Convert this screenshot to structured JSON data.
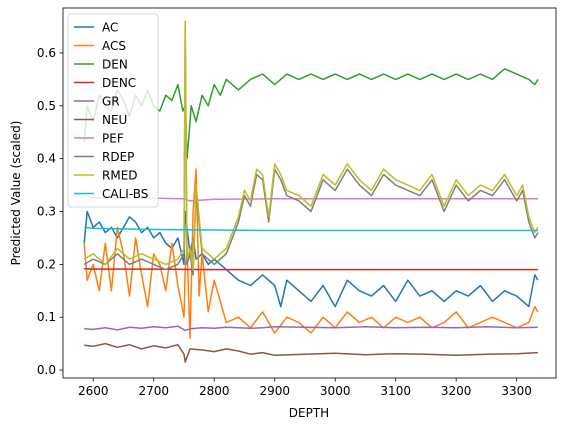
{
  "chart_data": {
    "type": "line",
    "xlabel": "DEPTH",
    "ylabel": "Predicted Value (scaled)",
    "xlim": [
      2550,
      3365
    ],
    "ylim": [
      -0.015,
      0.685
    ],
    "xticks": [
      2600,
      2700,
      2800,
      2900,
      3000,
      3100,
      3200,
      3300
    ],
    "yticks": [
      0.0,
      0.1,
      0.2,
      0.3,
      0.4,
      0.5,
      0.6
    ],
    "grid": false,
    "legend_position": "upper-left",
    "series": [
      {
        "name": "AC",
        "color": "#1f77b4",
        "x": [
          2585,
          2590,
          2600,
          2610,
          2620,
          2630,
          2640,
          2650,
          2660,
          2670,
          2680,
          2690,
          2700,
          2710,
          2720,
          2730,
          2740,
          2750,
          2752,
          2760,
          2765,
          2770,
          2780,
          2790,
          2800,
          2820,
          2840,
          2860,
          2880,
          2900,
          2910,
          2920,
          2940,
          2960,
          2980,
          3000,
          3020,
          3040,
          3060,
          3080,
          3100,
          3120,
          3140,
          3160,
          3180,
          3200,
          3220,
          3240,
          3260,
          3280,
          3300,
          3320,
          3330,
          3335
        ],
        "y": [
          0.24,
          0.3,
          0.27,
          0.28,
          0.26,
          0.27,
          0.25,
          0.27,
          0.29,
          0.28,
          0.26,
          0.27,
          0.25,
          0.26,
          0.24,
          0.23,
          0.25,
          0.2,
          0.3,
          0.22,
          0.25,
          0.21,
          0.22,
          0.2,
          0.21,
          0.19,
          0.17,
          0.16,
          0.18,
          0.16,
          0.12,
          0.17,
          0.15,
          0.13,
          0.16,
          0.12,
          0.17,
          0.15,
          0.14,
          0.16,
          0.13,
          0.17,
          0.14,
          0.15,
          0.13,
          0.15,
          0.14,
          0.16,
          0.13,
          0.15,
          0.14,
          0.12,
          0.18,
          0.17
        ]
      },
      {
        "name": "ACS",
        "color": "#ff7f0e",
        "x": [
          2585,
          2590,
          2600,
          2610,
          2620,
          2630,
          2640,
          2650,
          2660,
          2670,
          2680,
          2690,
          2700,
          2710,
          2720,
          2730,
          2740,
          2745,
          2750,
          2752,
          2755,
          2760,
          2765,
          2770,
          2775,
          2780,
          2790,
          2800,
          2820,
          2840,
          2860,
          2880,
          2900,
          2920,
          2940,
          2960,
          2980,
          3000,
          3020,
          3040,
          3060,
          3080,
          3100,
          3120,
          3140,
          3160,
          3180,
          3200,
          3220,
          3240,
          3260,
          3280,
          3300,
          3320,
          3330,
          3335
        ],
        "y": [
          0.24,
          0.17,
          0.2,
          0.15,
          0.24,
          0.15,
          0.27,
          0.22,
          0.14,
          0.25,
          0.18,
          0.12,
          0.22,
          0.2,
          0.15,
          0.24,
          0.16,
          0.13,
          0.1,
          0.19,
          0.23,
          0.06,
          0.3,
          0.38,
          0.14,
          0.22,
          0.11,
          0.17,
          0.09,
          0.1,
          0.08,
          0.11,
          0.07,
          0.1,
          0.09,
          0.07,
          0.1,
          0.08,
          0.11,
          0.09,
          0.1,
          0.08,
          0.1,
          0.09,
          0.1,
          0.08,
          0.09,
          0.11,
          0.08,
          0.09,
          0.1,
          0.09,
          0.08,
          0.09,
          0.12,
          0.11
        ]
      },
      {
        "name": "DEN",
        "color": "#2ca02c",
        "x": [
          2585,
          2590,
          2600,
          2610,
          2620,
          2630,
          2640,
          2650,
          2660,
          2670,
          2680,
          2690,
          2700,
          2710,
          2720,
          2730,
          2740,
          2748,
          2752,
          2755,
          2758,
          2762,
          2770,
          2780,
          2790,
          2800,
          2810,
          2820,
          2840,
          2860,
          2880,
          2900,
          2920,
          2940,
          2960,
          2980,
          3000,
          3020,
          3040,
          3060,
          3080,
          3100,
          3120,
          3140,
          3160,
          3180,
          3200,
          3220,
          3240,
          3260,
          3280,
          3300,
          3320,
          3330,
          3335
        ],
        "y": [
          0.43,
          0.5,
          0.47,
          0.52,
          0.5,
          0.49,
          0.53,
          0.51,
          0.48,
          0.52,
          0.5,
          0.53,
          0.5,
          0.49,
          0.52,
          0.51,
          0.54,
          0.49,
          0.5,
          0.4,
          0.44,
          0.5,
          0.47,
          0.52,
          0.5,
          0.54,
          0.52,
          0.55,
          0.53,
          0.55,
          0.56,
          0.54,
          0.56,
          0.55,
          0.56,
          0.55,
          0.56,
          0.55,
          0.56,
          0.55,
          0.56,
          0.55,
          0.56,
          0.55,
          0.56,
          0.55,
          0.56,
          0.55,
          0.56,
          0.55,
          0.57,
          0.56,
          0.55,
          0.54,
          0.55
        ]
      },
      {
        "name": "DENC",
        "color": "#d62728",
        "x": [
          2585,
          2600,
          2700,
          2800,
          2900,
          3000,
          3100,
          3200,
          3300,
          3335
        ],
        "y": [
          0.192,
          0.191,
          0.191,
          0.19,
          0.19,
          0.19,
          0.19,
          0.19,
          0.19,
          0.19
        ]
      },
      {
        "name": "GR",
        "color": "#9467bd",
        "x": [
          2585,
          2600,
          2620,
          2640,
          2660,
          2680,
          2700,
          2720,
          2740,
          2752,
          2760,
          2780,
          2800,
          2820,
          2840,
          2860,
          2880,
          2900,
          2950,
          3000,
          3050,
          3100,
          3150,
          3200,
          3250,
          3300,
          3335
        ],
        "y": [
          0.078,
          0.077,
          0.08,
          0.076,
          0.081,
          0.079,
          0.082,
          0.08,
          0.083,
          0.075,
          0.078,
          0.08,
          0.079,
          0.081,
          0.08,
          0.079,
          0.08,
          0.082,
          0.081,
          0.08,
          0.082,
          0.08,
          0.081,
          0.08,
          0.082,
          0.08,
          0.081
        ]
      },
      {
        "name": "NEU",
        "color": "#8c564b",
        "x": [
          2585,
          2600,
          2620,
          2640,
          2660,
          2680,
          2700,
          2720,
          2740,
          2750,
          2752,
          2760,
          2780,
          2800,
          2820,
          2840,
          2860,
          2880,
          2900,
          2950,
          3000,
          3050,
          3100,
          3150,
          3200,
          3250,
          3300,
          3335
        ],
        "y": [
          0.047,
          0.045,
          0.05,
          0.043,
          0.048,
          0.04,
          0.046,
          0.042,
          0.048,
          0.03,
          0.015,
          0.04,
          0.038,
          0.035,
          0.04,
          0.036,
          0.03,
          0.033,
          0.028,
          0.03,
          0.032,
          0.029,
          0.031,
          0.03,
          0.028,
          0.03,
          0.031,
          0.033
        ]
      },
      {
        "name": "PEF",
        "color": "#e377c2",
        "x": [
          2585,
          2600,
          2700,
          2750,
          2760,
          2800,
          2900,
          3000,
          3100,
          3200,
          3300,
          3335
        ],
        "y": [
          0.33,
          0.326,
          0.325,
          0.324,
          0.32,
          0.323,
          0.324,
          0.324,
          0.324,
          0.324,
          0.324,
          0.324
        ]
      },
      {
        "name": "RDEP",
        "color": "#7f7f7f",
        "x": [
          2585,
          2600,
          2620,
          2640,
          2660,
          2680,
          2700,
          2720,
          2740,
          2750,
          2752,
          2755,
          2760,
          2765,
          2770,
          2780,
          2800,
          2820,
          2830,
          2840,
          2850,
          2860,
          2870,
          2880,
          2890,
          2900,
          2910,
          2920,
          2940,
          2960,
          2980,
          3000,
          3020,
          3040,
          3060,
          3080,
          3100,
          3120,
          3140,
          3160,
          3180,
          3200,
          3220,
          3240,
          3260,
          3280,
          3300,
          3310,
          3320,
          3330,
          3335
        ],
        "y": [
          0.2,
          0.21,
          0.2,
          0.22,
          0.2,
          0.21,
          0.2,
          0.19,
          0.2,
          0.22,
          0.65,
          0.2,
          0.22,
          0.18,
          0.34,
          0.22,
          0.2,
          0.22,
          0.25,
          0.28,
          0.33,
          0.31,
          0.37,
          0.36,
          0.28,
          0.38,
          0.36,
          0.33,
          0.32,
          0.3,
          0.36,
          0.34,
          0.38,
          0.35,
          0.33,
          0.37,
          0.35,
          0.34,
          0.33,
          0.36,
          0.3,
          0.35,
          0.32,
          0.34,
          0.33,
          0.36,
          0.32,
          0.34,
          0.28,
          0.25,
          0.26
        ]
      },
      {
        "name": "RMED",
        "color": "#bcbd22",
        "x": [
          2585,
          2600,
          2620,
          2640,
          2660,
          2680,
          2700,
          2720,
          2740,
          2750,
          2752,
          2755,
          2760,
          2765,
          2770,
          2780,
          2800,
          2820,
          2830,
          2840,
          2850,
          2860,
          2870,
          2880,
          2890,
          2900,
          2910,
          2920,
          2940,
          2960,
          2980,
          3000,
          3020,
          3040,
          3060,
          3080,
          3100,
          3120,
          3140,
          3160,
          3180,
          3200,
          3220,
          3240,
          3260,
          3280,
          3300,
          3310,
          3320,
          3330,
          3335
        ],
        "y": [
          0.21,
          0.22,
          0.2,
          0.23,
          0.21,
          0.22,
          0.21,
          0.2,
          0.21,
          0.23,
          0.66,
          0.21,
          0.23,
          0.19,
          0.35,
          0.23,
          0.21,
          0.23,
          0.26,
          0.29,
          0.34,
          0.32,
          0.38,
          0.37,
          0.29,
          0.39,
          0.37,
          0.34,
          0.33,
          0.31,
          0.37,
          0.35,
          0.39,
          0.36,
          0.34,
          0.38,
          0.36,
          0.35,
          0.34,
          0.37,
          0.31,
          0.36,
          0.33,
          0.35,
          0.34,
          0.37,
          0.33,
          0.35,
          0.29,
          0.26,
          0.27
        ]
      },
      {
        "name": "CALI-BS",
        "color": "#17becf",
        "x": [
          2585,
          2600,
          2700,
          2800,
          2900,
          3000,
          3100,
          3200,
          3300,
          3335
        ],
        "y": [
          0.27,
          0.268,
          0.266,
          0.265,
          0.264,
          0.264,
          0.264,
          0.264,
          0.264,
          0.264
        ]
      }
    ]
  }
}
